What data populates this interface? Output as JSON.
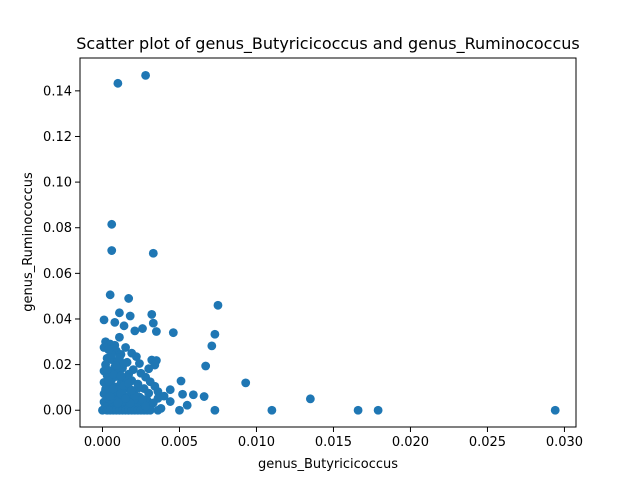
{
  "chart_data": {
    "type": "scatter",
    "title": "Scatter plot of genus_Butyricicoccus and genus_Ruminococcus",
    "xlabel": "genus_Butyricicoccus",
    "ylabel": "genus_Ruminococcus",
    "xlim": [
      -0.00146,
      0.03075
    ],
    "ylim": [
      -0.00735,
      0.1544
    ],
    "grid": false,
    "marker_color": "#1f77b4",
    "x_ticks": [
      0.0,
      0.005,
      0.01,
      0.015,
      0.02,
      0.025,
      0.03
    ],
    "x_tick_labels": [
      "0.000",
      "0.005",
      "0.010",
      "0.015",
      "0.020",
      "0.025",
      "0.030"
    ],
    "y_ticks": [
      0.0,
      0.02,
      0.04,
      0.06,
      0.08,
      0.1,
      0.12,
      0.14
    ],
    "y_tick_labels": [
      "0.00",
      "0.02",
      "0.04",
      "0.06",
      "0.08",
      "0.10",
      "0.12",
      "0.14"
    ],
    "series": [
      {
        "points": [
          [
            0.001,
            0.1433
          ],
          [
            0.0028,
            0.1468
          ],
          [
            0.0006,
            0.0815
          ],
          [
            0.0006,
            0.07
          ],
          [
            0.0033,
            0.0688
          ],
          [
            0.0005,
            0.0506
          ],
          [
            0.0017,
            0.049
          ],
          [
            0.0075,
            0.046
          ],
          [
            0.0011,
            0.0427
          ],
          [
            0.0032,
            0.042
          ],
          [
            0.0018,
            0.0413
          ],
          [
            0.0001,
            0.0396
          ],
          [
            0.0008,
            0.0385
          ],
          [
            0.0033,
            0.0382
          ],
          [
            0.0014,
            0.037
          ],
          [
            0.0026,
            0.0358
          ],
          [
            0.0021,
            0.0348
          ],
          [
            0.0035,
            0.0345
          ],
          [
            0.0046,
            0.034
          ],
          [
            0.0073,
            0.0333
          ],
          [
            0.0011,
            0.032
          ],
          [
            0.0002,
            0.03
          ],
          [
            0.0005,
            0.029
          ],
          [
            0.0008,
            0.0285
          ],
          [
            0.0071,
            0.0282
          ],
          [
            0.0001,
            0.0275
          ],
          [
            0.0015,
            0.0275
          ],
          [
            0.0009,
            0.026
          ],
          [
            0.0019,
            0.025
          ],
          [
            0.0012,
            0.0245
          ],
          [
            0.0022,
            0.0235
          ],
          [
            0.0003,
            0.0228
          ],
          [
            0.0006,
            0.0222
          ],
          [
            0.0032,
            0.022
          ],
          [
            0.0035,
            0.0218
          ],
          [
            0.001,
            0.0215
          ],
          [
            0.0016,
            0.021
          ],
          [
            0.0024,
            0.0205
          ],
          [
            0.0002,
            0.02
          ],
          [
            0.0034,
            0.0198
          ],
          [
            0.0067,
            0.0194
          ],
          [
            0.0008,
            0.019
          ],
          [
            0.0013,
            0.0185
          ],
          [
            0.003,
            0.0182
          ],
          [
            0.002,
            0.0178
          ],
          [
            0.0001,
            0.0172
          ],
          [
            0.0005,
            0.0168
          ],
          [
            0.0011,
            0.0165
          ],
          [
            0.0025,
            0.0162
          ],
          [
            0.0017,
            0.0158
          ],
          [
            0.0003,
            0.0152
          ],
          [
            0.0009,
            0.0148
          ],
          [
            0.0028,
            0.0145
          ],
          [
            0.0014,
            0.014
          ],
          [
            0.0006,
            0.0135
          ],
          [
            0.0019,
            0.013
          ],
          [
            0.0051,
            0.0128
          ],
          [
            0.0031,
            0.0125
          ],
          [
            0.0001,
            0.0122
          ],
          [
            0.0093,
            0.012
          ],
          [
            0.0012,
            0.0118
          ],
          [
            0.0023,
            0.0115
          ],
          [
            0.0004,
            0.011
          ],
          [
            0.0034,
            0.0105
          ],
          [
            0.0008,
            0.0102
          ],
          [
            0.0016,
            0.0098
          ],
          [
            0.0027,
            0.0095
          ],
          [
            0.0002,
            0.0092
          ],
          [
            0.0044,
            0.009
          ],
          [
            0.001,
            0.0088
          ],
          [
            0.002,
            0.0085
          ],
          [
            0.0036,
            0.0082
          ],
          [
            0.0006,
            0.008
          ],
          [
            0.0013,
            0.0078
          ],
          [
            0.003,
            0.0075
          ],
          [
            0.0001,
            0.0072
          ],
          [
            0.0052,
            0.007
          ],
          [
            0.0059,
            0.0068
          ],
          [
            0.0018,
            0.0066
          ],
          [
            0.0008,
            0.0064
          ],
          [
            0.004,
            0.0062
          ],
          [
            0.0066,
            0.006
          ],
          [
            0.0024,
            0.0058
          ],
          [
            0.0003,
            0.0056
          ],
          [
            0.0011,
            0.0054
          ],
          [
            0.0036,
            0.0052
          ],
          [
            0.0135,
            0.005
          ],
          [
            0.0015,
            0.0048
          ],
          [
            0.0005,
            0.0046
          ],
          [
            0.0029,
            0.0044
          ],
          [
            0.0021,
            0.0042
          ],
          [
            0.0009,
            0.004
          ],
          [
            0.0044,
            0.0038
          ],
          [
            0.0001,
            0.0036
          ],
          [
            0.0012,
            0.0034
          ],
          [
            0.0033,
            0.0032
          ],
          [
            0.0007,
            0.003
          ],
          [
            0.0017,
            0.0028
          ],
          [
            0.0025,
            0.0026
          ],
          [
            0.0004,
            0.0024
          ],
          [
            0.0055,
            0.0022
          ],
          [
            0.0014,
            0.002
          ],
          [
            0.0031,
            0.0018
          ],
          [
            0.0002,
            0.0016
          ],
          [
            0.001,
            0.0014
          ],
          [
            0.0022,
            0.0012
          ],
          [
            0.0006,
            0.001
          ],
          [
            0.0038,
            0.0008
          ],
          [
            0.0016,
            0.0006
          ],
          [
            0.0001,
            0.0005
          ],
          [
            0.0008,
            0.0004
          ],
          [
            0.0027,
            0.0003
          ],
          [
            0.0013,
            0.0002
          ],
          [
            0.0004,
            0.0001
          ],
          [
            0.002,
            0.0001
          ],
          [
            0.0,
            0.0
          ],
          [
            0.0003,
            0.0
          ],
          [
            0.0005,
            0.0
          ],
          [
            0.0007,
            0.0
          ],
          [
            0.0009,
            0.0
          ],
          [
            0.0011,
            0.0
          ],
          [
            0.0013,
            0.0
          ],
          [
            0.0015,
            0.0
          ],
          [
            0.0017,
            0.0
          ],
          [
            0.0019,
            0.0
          ],
          [
            0.0021,
            0.0
          ],
          [
            0.0023,
            0.0
          ],
          [
            0.0025,
            0.0
          ],
          [
            0.0027,
            0.0
          ],
          [
            0.0029,
            0.0
          ],
          [
            0.0031,
            0.0
          ],
          [
            0.0036,
            0.0
          ],
          [
            0.005,
            0.0
          ],
          [
            0.0073,
            0.0
          ],
          [
            0.011,
            0.0
          ],
          [
            0.0166,
            0.0
          ],
          [
            0.0179,
            0.0
          ],
          [
            0.0294,
            0.0
          ],
          [
            0.0002,
            0.0085
          ],
          [
            0.0004,
            0.0128
          ],
          [
            0.0007,
            0.0158
          ],
          [
            0.0009,
            0.0196
          ],
          [
            0.0012,
            0.0072
          ],
          [
            0.0014,
            0.0108
          ],
          [
            0.0016,
            0.0142
          ],
          [
            0.0018,
            0.0032
          ],
          [
            0.0021,
            0.0064
          ],
          [
            0.0023,
            0.0096
          ],
          [
            0.0026,
            0.0048
          ],
          [
            0.0028,
            0.0018
          ],
          [
            0.0003,
            0.0178
          ],
          [
            0.0005,
            0.0062
          ],
          [
            0.0007,
            0.0094
          ],
          [
            0.001,
            0.0032
          ],
          [
            0.0012,
            0.015
          ],
          [
            0.0015,
            0.0052
          ],
          [
            0.0017,
            0.0118
          ],
          [
            0.0019,
            0.0088
          ],
          [
            0.0006,
            0.0245
          ],
          [
            0.0011,
            0.023
          ],
          [
            0.0014,
            0.0205
          ],
          [
            0.0004,
            0.0265
          ]
        ]
      }
    ]
  }
}
